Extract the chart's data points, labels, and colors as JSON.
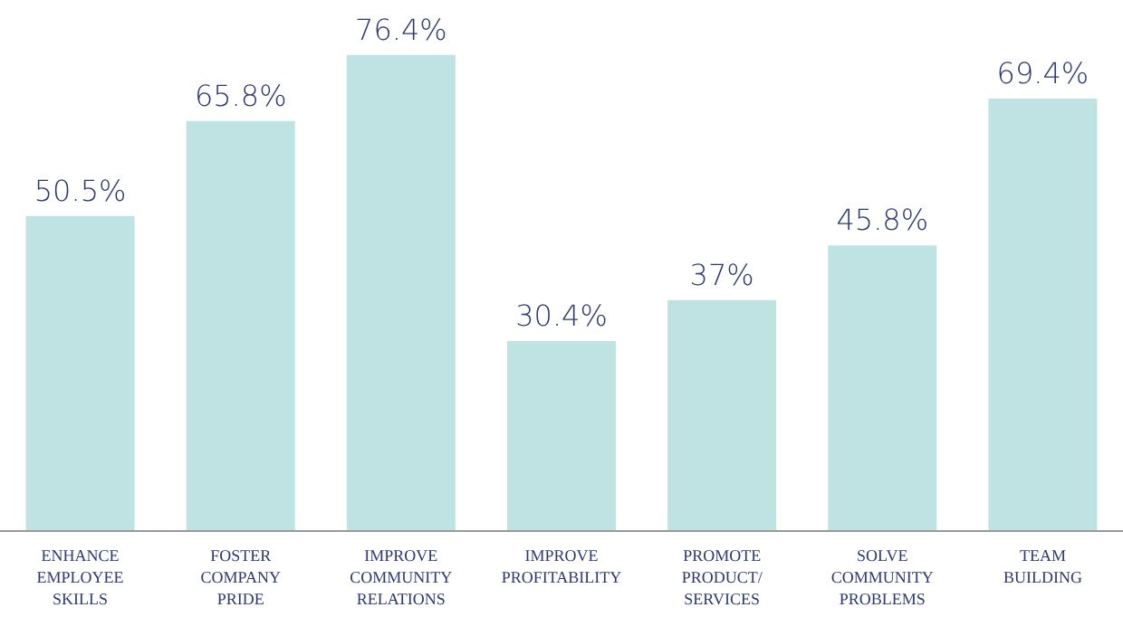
{
  "chart_data": {
    "type": "bar",
    "categories": [
      "ENHANCE\nEMPLOYEE\nSKILLS",
      "FOSTER\nCOMPANY\nPRIDE",
      "IMPROVE\nCOMMUNITY\nRELATIONS",
      "IMPROVE\nPROFITABILITY",
      "PROMOTE\nPRODUCT/\nSERVICES",
      "SOLVE\nCOMMUNITY\nPROBLEMS",
      "TEAM\nBUILDING"
    ],
    "values": [
      50.5,
      65.8,
      76.4,
      30.4,
      37,
      45.8,
      69.4
    ],
    "value_labels": [
      "50.5%",
      "65.8%",
      "76.4%",
      "30.4%",
      "37%",
      "45.8%",
      "69.4%"
    ],
    "color": "#bfe3e3"
  }
}
